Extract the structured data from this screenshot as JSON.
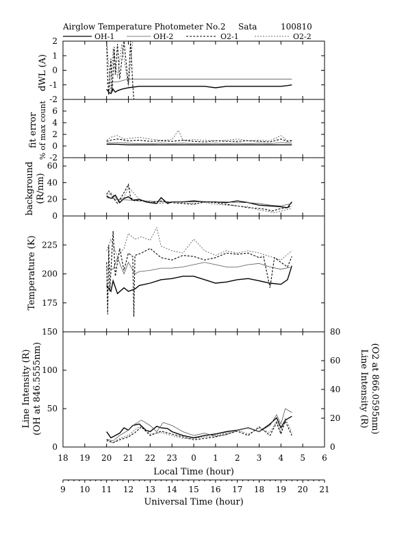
{
  "header": {
    "title": "Airglow Temperature Photometer No.2",
    "site": "Sata",
    "date": "100810"
  },
  "legend": [
    {
      "name": "OH-1",
      "color": "#000000",
      "dash": "",
      "width": 1.4
    },
    {
      "name": "OH-2",
      "color": "#555555",
      "dash": "",
      "width": 0.8
    },
    {
      "name": "O2-1",
      "color": "#000000",
      "dash": "3,2",
      "width": 1.1
    },
    {
      "name": "O2-2",
      "color": "#444444",
      "dash": "2,2",
      "width": 0.8
    }
  ],
  "axes": {
    "local_time_label": "Local Time (hour)",
    "local_ticks": [
      "18",
      "19",
      "20",
      "21",
      "22",
      "23",
      "0",
      "1",
      "2",
      "3",
      "4",
      "5",
      "6"
    ],
    "universal_time_label": "Universal Time (hour)",
    "ut_ticks": [
      "9",
      "10",
      "11",
      "12",
      "13",
      "14",
      "15",
      "16",
      "17",
      "18",
      "19",
      "20",
      "21"
    ],
    "x_range_ut": [
      9,
      21
    ]
  },
  "chart_data": [
    {
      "type": "line",
      "panel": "dwl",
      "ylabel": "dWL (A)",
      "ylim": [
        -2,
        2
      ],
      "yticks": [
        "-2",
        "-1",
        "0",
        "1",
        "2"
      ],
      "series": [
        {
          "name": "OH-1",
          "x": [
            11.0,
            11.1,
            11.2,
            11.3,
            11.4,
            11.5,
            11.7,
            12.0,
            12.5,
            13.0,
            13.5,
            14.0,
            14.5,
            15.0,
            15.5,
            16.0,
            16.5,
            17.0,
            17.5,
            18.0,
            18.5,
            19.0,
            19.3,
            19.5
          ],
          "y": [
            -1.3,
            -1.5,
            -1.6,
            -1.3,
            -1.5,
            -1.4,
            -1.3,
            -1.2,
            -1.1,
            -1.1,
            -1.1,
            -1.1,
            -1.1,
            -1.1,
            -1.1,
            -1.2,
            -1.1,
            -1.1,
            -1.1,
            -1.1,
            -1.1,
            -1.1,
            -1.05,
            -1.0
          ]
        },
        {
          "name": "OH-2",
          "x": [
            11.0,
            11.2,
            11.5,
            12.0,
            12.5,
            13.0,
            13.5,
            14.0,
            14.5,
            15.0,
            15.5,
            16.0,
            16.5,
            17.0,
            17.5,
            18.0,
            18.5,
            19.0,
            19.5
          ],
          "y": [
            -0.9,
            -0.8,
            -0.8,
            -0.6,
            -0.6,
            -0.6,
            -0.6,
            -0.6,
            -0.6,
            -0.6,
            -0.6,
            -0.6,
            -0.6,
            -0.6,
            -0.6,
            -0.6,
            -0.6,
            -0.6,
            -0.6
          ]
        },
        {
          "name": "O2-1",
          "x": [
            11.0,
            11.05,
            11.1,
            11.15,
            11.2,
            11.25,
            11.3,
            11.35,
            11.4,
            11.5,
            11.6,
            11.8,
            12.0,
            12.1,
            12.2,
            12.25
          ],
          "y": [
            2.0,
            -0.5,
            -1.7,
            -0.3,
            0.8,
            -1.5,
            -0.2,
            1.6,
            -0.3,
            1.8,
            -0.6,
            2.0,
            -1.0,
            2.0,
            -1.0,
            -2.0
          ]
        },
        {
          "name": "O2-2",
          "x": [
            11.0,
            11.1,
            11.2,
            11.3,
            11.5,
            11.7,
            12.0,
            12.2
          ],
          "y": [
            2.0,
            0.3,
            -1.5,
            1.5,
            -0.5,
            1.8,
            -1.1,
            2.0
          ]
        }
      ]
    },
    {
      "type": "line",
      "panel": "fit_error",
      "ylabel": "fit error",
      "ylabel2": "% of max count",
      "ylim": [
        -2,
        8
      ],
      "yticks": [
        "-2",
        "0",
        "2",
        "4",
        "6"
      ],
      "series": [
        {
          "name": "OH-1",
          "x": [
            11.0,
            11.5,
            12.0,
            12.5,
            13.0,
            13.5,
            14.0,
            14.5,
            15.0,
            15.5,
            16.0,
            16.5,
            17.0,
            17.5,
            18.0,
            18.5,
            19.0,
            19.5
          ],
          "y": [
            0.3,
            0.3,
            0.2,
            0.2,
            0.2,
            0.2,
            0.2,
            0.2,
            0.2,
            0.2,
            0.2,
            0.2,
            0.2,
            0.2,
            0.2,
            0.2,
            0.2,
            0.2
          ]
        },
        {
          "name": "OH-2",
          "x": [
            11.0,
            11.5,
            12.0,
            12.5,
            13.0,
            13.5,
            14.0,
            14.5,
            15.0,
            15.5,
            16.0,
            16.5,
            17.0,
            17.5,
            18.0,
            18.5,
            19.0,
            19.5
          ],
          "y": [
            0.5,
            0.6,
            0.5,
            0.4,
            0.4,
            0.5,
            0.4,
            0.5,
            0.4,
            0.4,
            0.5,
            0.4,
            0.5,
            0.4,
            0.5,
            0.4,
            0.6,
            0.5
          ]
        },
        {
          "name": "O2-1",
          "x": [
            11.0,
            11.2,
            11.5,
            12.0,
            12.5,
            13.0,
            13.5,
            14.0,
            14.5,
            15.0,
            15.5,
            16.0,
            16.5,
            17.0,
            17.5,
            18.0,
            18.5,
            19.0,
            19.3,
            19.5
          ],
          "y": [
            0.8,
            1.0,
            1.2,
            0.9,
            1.0,
            0.8,
            0.9,
            0.8,
            1.0,
            0.8,
            0.7,
            0.9,
            0.8,
            0.8,
            0.9,
            0.8,
            0.7,
            1.2,
            0.8,
            0.9
          ]
        },
        {
          "name": "O2-2",
          "x": [
            11.0,
            11.2,
            11.5,
            11.8,
            12.0,
            12.5,
            13.0,
            13.5,
            14.0,
            14.3,
            14.5,
            15.0,
            15.5,
            16.0,
            16.5,
            17.0,
            17.5,
            18.0,
            18.5,
            19.0,
            19.3,
            19.5
          ],
          "y": [
            1.0,
            1.5,
            1.8,
            1.2,
            1.3,
            1.5,
            1.2,
            1.0,
            1.1,
            2.7,
            1.0,
            1.1,
            1.0,
            0.9,
            1.0,
            1.2,
            0.9,
            1.0,
            0.9,
            1.8,
            0.9,
            1.0
          ]
        }
      ]
    },
    {
      "type": "line",
      "panel": "background",
      "ylabel": "background",
      "ylabel2": "(R/nm)",
      "ylim": [
        0,
        70
      ],
      "yticks": [
        "0",
        "20",
        "40",
        "60"
      ],
      "series": [
        {
          "name": "OH-1",
          "x": [
            11.0,
            11.2,
            11.4,
            11.6,
            11.8,
            12.0,
            12.2,
            12.5,
            12.8,
            13.0,
            13.3,
            13.5,
            13.8,
            14.0,
            14.5,
            15.0,
            15.5,
            16.0,
            16.5,
            17.0,
            17.5,
            18.0,
            18.5,
            19.0,
            19.3,
            19.5
          ],
          "y": [
            24,
            21,
            25,
            16,
            21,
            23,
            19,
            20,
            17,
            16,
            15,
            22,
            15,
            17,
            17,
            18,
            17,
            17,
            16,
            18,
            16,
            13,
            12,
            11,
            10,
            17
          ]
        },
        {
          "name": "OH-2",
          "x": [
            11.0,
            11.5,
            12.0,
            12.5,
            13.0,
            13.5,
            14.0,
            14.5,
            15.0,
            15.5,
            16.0,
            16.5,
            17.0,
            17.5,
            18.0,
            18.5,
            19.0,
            19.5
          ],
          "y": [
            22,
            20,
            19,
            18,
            18,
            17,
            17,
            17,
            17,
            17,
            17,
            17,
            16,
            16,
            15,
            13,
            12,
            15
          ]
        },
        {
          "name": "O2-1",
          "x": [
            11.0,
            11.1,
            11.3,
            11.5,
            11.8,
            12.0,
            12.1,
            12.3,
            12.5,
            13.0,
            13.5,
            14.0,
            14.5,
            15.0,
            15.5,
            16.0,
            16.5,
            17.0,
            17.5,
            18.0,
            18.3,
            18.6,
            19.0,
            19.3,
            19.5
          ],
          "y": [
            26,
            30,
            22,
            15,
            28,
            38,
            22,
            18,
            19,
            16,
            18,
            16,
            15,
            14,
            17,
            16,
            14,
            12,
            10,
            9,
            8,
            6,
            9,
            10,
            12
          ]
        },
        {
          "name": "O2-2",
          "x": [
            11.0,
            11.2,
            11.5,
            11.8,
            12.0,
            12.5,
            13.0,
            13.5,
            14.0,
            14.5,
            15.0,
            15.5,
            16.0,
            16.5,
            17.0,
            17.5,
            18.0,
            18.5,
            18.7,
            19.0,
            19.5
          ],
          "y": [
            24,
            28,
            19,
            22,
            35,
            20,
            17,
            15,
            17,
            16,
            15,
            16,
            14,
            13,
            12,
            11,
            7,
            5,
            4,
            6,
            9
          ]
        }
      ]
    },
    {
      "type": "line",
      "panel": "temperature",
      "ylabel": "Temperature (K)",
      "ylim": [
        150,
        250
      ],
      "yticks": [
        "175",
        "200",
        "225"
      ],
      "series": [
        {
          "name": "OH-1",
          "x": [
            11.0,
            11.2,
            11.3,
            11.5,
            11.8,
            12.0,
            12.3,
            12.5,
            13.0,
            13.5,
            14.0,
            14.5,
            15.0,
            15.5,
            16.0,
            16.5,
            17.0,
            17.5,
            18.0,
            18.5,
            19.0,
            19.3,
            19.5
          ],
          "y": [
            190,
            185,
            194,
            183,
            188,
            185,
            187,
            190,
            192,
            195,
            196,
            198,
            198,
            195,
            192,
            193,
            195,
            196,
            194,
            192,
            191,
            195,
            207
          ]
        },
        {
          "name": "OH-2",
          "x": [
            11.0,
            11.3,
            11.5,
            11.8,
            12.0,
            12.3,
            12.5,
            13.0,
            13.5,
            14.0,
            14.5,
            15.0,
            15.5,
            16.0,
            16.5,
            17.0,
            17.5,
            18.0,
            18.5,
            19.0,
            19.5
          ],
          "y": [
            205,
            204,
            214,
            200,
            210,
            200,
            202,
            203,
            205,
            205,
            206,
            208,
            210,
            208,
            206,
            206,
            208,
            209,
            206,
            204,
            206
          ]
        },
        {
          "name": "O2-1",
          "x": [
            11.0,
            11.05,
            11.1,
            11.15,
            11.3,
            11.4,
            11.6,
            11.8,
            12.0,
            12.2,
            12.25,
            12.3,
            12.6,
            13.0,
            13.5,
            14.0,
            14.5,
            15.0,
            15.5,
            16.0,
            16.5,
            17.0,
            17.5,
            18.0,
            18.2,
            18.5,
            18.7,
            19.0,
            19.3,
            19.5
          ],
          "y": [
            210,
            165,
            225,
            185,
            237,
            198,
            222,
            203,
            218,
            215,
            163,
            216,
            218,
            222,
            214,
            212,
            216,
            215,
            212,
            214,
            218,
            217,
            218,
            214,
            215,
            188,
            214,
            210,
            206,
            215
          ]
        },
        {
          "name": "O2-2",
          "x": [
            11.0,
            11.2,
            11.5,
            11.8,
            12.0,
            12.3,
            12.6,
            13.0,
            13.3,
            13.5,
            14.0,
            14.5,
            15.0,
            15.5,
            16.0,
            16.5,
            17.0,
            17.5,
            18.0,
            18.5,
            19.0,
            19.5
          ],
          "y": [
            220,
            230,
            215,
            222,
            235,
            230,
            232,
            229,
            240,
            224,
            220,
            218,
            230,
            220,
            216,
            220,
            218,
            220,
            218,
            215,
            212,
            220
          ]
        }
      ]
    },
    {
      "type": "line",
      "panel": "intensity",
      "ylabel": "Line Intensity (R)",
      "ylabel2": "(OH at 846.5555nm)",
      "ylim": [
        0,
        150
      ],
      "yticks": [
        "0",
        "50",
        "100",
        "150"
      ],
      "ylabel_right": "Line Intensity (R)",
      "ylabel_right2": "(O2 at 866.0595nm)",
      "ylim_right": [
        0,
        80
      ],
      "yticks_right": [
        "0",
        "20",
        "40",
        "60",
        "80"
      ],
      "series": [
        {
          "name": "OH-1",
          "x": [
            11.0,
            11.2,
            11.4,
            11.6,
            11.8,
            12.0,
            12.2,
            12.5,
            12.8,
            13.0,
            13.3,
            13.5,
            13.8,
            14.0,
            14.5,
            15.0,
            15.5,
            16.0,
            16.5,
            17.0,
            17.5,
            18.0,
            18.5,
            18.8,
            19.0,
            19.2,
            19.5
          ],
          "y": [
            20,
            12,
            15,
            18,
            25,
            22,
            28,
            30,
            22,
            20,
            27,
            25,
            24,
            20,
            15,
            12,
            15,
            17,
            20,
            22,
            25,
            20,
            30,
            38,
            25,
            35,
            40
          ]
        },
        {
          "name": "OH-2",
          "x": [
            11.0,
            11.3,
            11.6,
            12.0,
            12.3,
            12.6,
            13.0,
            13.3,
            13.6,
            14.0,
            14.5,
            15.0,
            15.5,
            16.0,
            16.5,
            17.0,
            17.5,
            18.0,
            18.5,
            18.8,
            19.0,
            19.2,
            19.5
          ],
          "y": [
            10,
            8,
            15,
            22,
            30,
            35,
            28,
            20,
            32,
            28,
            20,
            15,
            18,
            14,
            16,
            22,
            25,
            20,
            28,
            42,
            30,
            50,
            45
          ]
        },
        {
          "name": "O2-1",
          "x": [
            11.0,
            11.3,
            11.6,
            12.0,
            12.3,
            12.6,
            13.0,
            13.5,
            14.0,
            14.5,
            15.0,
            15.5,
            16.0,
            16.5,
            17.0,
            17.5,
            18.0,
            18.5,
            18.8,
            19.0,
            19.2,
            19.5
          ],
          "y": [
            5,
            3,
            5,
            7,
            10,
            14,
            8,
            11,
            9,
            7,
            5,
            6,
            7,
            9,
            11,
            8,
            14,
            8,
            17,
            9,
            18,
            8
          ]
        },
        {
          "name": "O2-2",
          "x": [
            11.0,
            11.3,
            11.6,
            12.0,
            12.3,
            12.6,
            13.0,
            13.5,
            14.0,
            14.5,
            15.0,
            15.5,
            16.0,
            16.5,
            17.0,
            17.5,
            18.0,
            18.5,
            18.8,
            19.0,
            19.2,
            19.5
          ],
          "y": [
            4,
            3,
            6,
            8,
            12,
            15,
            9,
            10,
            8,
            6,
            6,
            7,
            8,
            10,
            12,
            9,
            13,
            10,
            18,
            10,
            20,
            10
          ]
        }
      ]
    }
  ]
}
